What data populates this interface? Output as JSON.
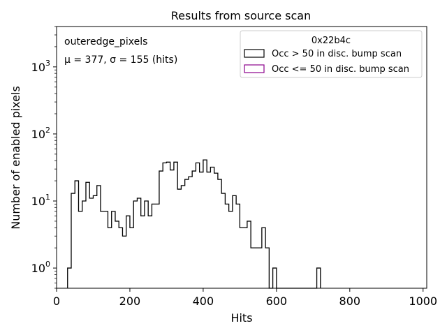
{
  "chart_data": {
    "type": "histogram",
    "title": "Results from source scan",
    "xlabel": "Hits",
    "ylabel": "Number of enabled pixels",
    "xlim": [
      0,
      1010
    ],
    "ylim": [
      0.5,
      4000
    ],
    "yscale": "log",
    "xticks": [
      0,
      200,
      400,
      600,
      800,
      1000
    ],
    "xtick_labels": [
      "0",
      "200",
      "400",
      "600",
      "800",
      "1000"
    ],
    "yticks": [
      1,
      10,
      100,
      1000
    ],
    "ytick_labels": [
      {
        "base": "10",
        "exp": "0"
      },
      {
        "base": "10",
        "exp": "1"
      },
      {
        "base": "10",
        "exp": "2"
      },
      {
        "base": "10",
        "exp": "3"
      }
    ],
    "annotations": {
      "name": "outeredge_pixels",
      "stats": "μ = 377, σ = 155 (hits)"
    },
    "legend": {
      "title": "0x22b4c",
      "location": "top-right",
      "entries": [
        {
          "label": "Occ > 50 in disc. bump scan",
          "color": "#000000"
        },
        {
          "label": "Occ <= 50 in disc. bump scan",
          "color": "#8b008b"
        }
      ]
    },
    "bin_width": 10,
    "series": [
      {
        "name": "Occ > 50 in disc. bump scan",
        "color": "#000000",
        "bins": [
          {
            "x": 30,
            "y": 1
          },
          {
            "x": 40,
            "y": 13
          },
          {
            "x": 50,
            "y": 20
          },
          {
            "x": 60,
            "y": 7
          },
          {
            "x": 70,
            "y": 10
          },
          {
            "x": 80,
            "y": 19
          },
          {
            "x": 90,
            "y": 11
          },
          {
            "x": 100,
            "y": 12
          },
          {
            "x": 110,
            "y": 17
          },
          {
            "x": 120,
            "y": 7
          },
          {
            "x": 130,
            "y": 7
          },
          {
            "x": 140,
            "y": 4
          },
          {
            "x": 150,
            "y": 7
          },
          {
            "x": 160,
            "y": 5
          },
          {
            "x": 170,
            "y": 4
          },
          {
            "x": 180,
            "y": 3
          },
          {
            "x": 190,
            "y": 6
          },
          {
            "x": 200,
            "y": 4
          },
          {
            "x": 210,
            "y": 10
          },
          {
            "x": 220,
            "y": 11
          },
          {
            "x": 230,
            "y": 6
          },
          {
            "x": 240,
            "y": 10
          },
          {
            "x": 250,
            "y": 6
          },
          {
            "x": 260,
            "y": 9
          },
          {
            "x": 270,
            "y": 9
          },
          {
            "x": 280,
            "y": 28
          },
          {
            "x": 290,
            "y": 37
          },
          {
            "x": 300,
            "y": 38
          },
          {
            "x": 310,
            "y": 29
          },
          {
            "x": 320,
            "y": 38
          },
          {
            "x": 330,
            "y": 15
          },
          {
            "x": 340,
            "y": 17
          },
          {
            "x": 350,
            "y": 21
          },
          {
            "x": 360,
            "y": 23
          },
          {
            "x": 370,
            "y": 28
          },
          {
            "x": 380,
            "y": 37
          },
          {
            "x": 390,
            "y": 27
          },
          {
            "x": 400,
            "y": 41
          },
          {
            "x": 410,
            "y": 27
          },
          {
            "x": 420,
            "y": 32
          },
          {
            "x": 430,
            "y": 26
          },
          {
            "x": 440,
            "y": 21
          },
          {
            "x": 450,
            "y": 13
          },
          {
            "x": 460,
            "y": 9
          },
          {
            "x": 470,
            "y": 7
          },
          {
            "x": 480,
            "y": 12
          },
          {
            "x": 490,
            "y": 9
          },
          {
            "x": 500,
            "y": 4
          },
          {
            "x": 510,
            "y": 4
          },
          {
            "x": 520,
            "y": 5
          },
          {
            "x": 530,
            "y": 2
          },
          {
            "x": 540,
            "y": 2
          },
          {
            "x": 550,
            "y": 2
          },
          {
            "x": 560,
            "y": 4
          },
          {
            "x": 570,
            "y": 2
          },
          {
            "x": 580,
            "y": 0
          },
          {
            "x": 590,
            "y": 1
          },
          {
            "x": 600,
            "y": 0
          },
          {
            "x": 610,
            "y": 0
          },
          {
            "x": 620,
            "y": 0
          },
          {
            "x": 630,
            "y": 0
          },
          {
            "x": 640,
            "y": 0
          },
          {
            "x": 650,
            "y": 0
          },
          {
            "x": 660,
            "y": 0
          },
          {
            "x": 670,
            "y": 0
          },
          {
            "x": 680,
            "y": 0
          },
          {
            "x": 690,
            "y": 0
          },
          {
            "x": 700,
            "y": 0
          },
          {
            "x": 710,
            "y": 1
          }
        ]
      },
      {
        "name": "Occ <= 50 in disc. bump scan",
        "color": "#8b008b",
        "bins": []
      }
    ]
  }
}
